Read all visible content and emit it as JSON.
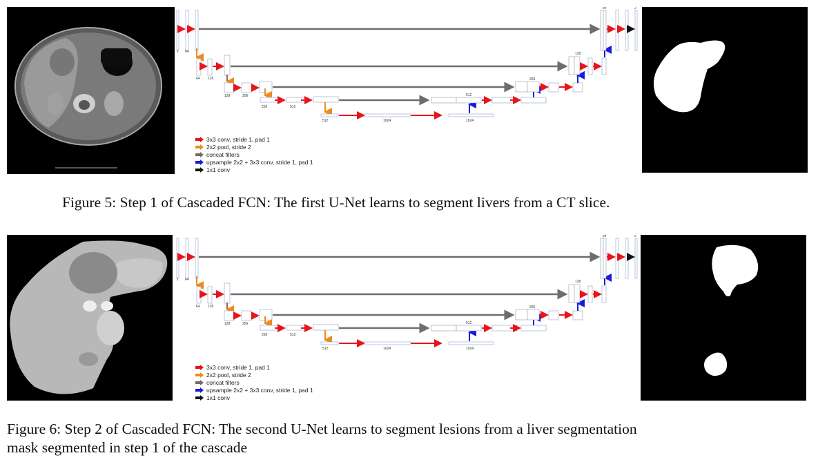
{
  "figures": [
    {
      "caption": "Figure 5: Step 1 of Cascaded FCN: The first U-Net learns to segment livers from a CT slice.",
      "input_desc": "ct-slice",
      "output_desc": "liver-mask"
    },
    {
      "caption_line1": "Figure 6: Step 2 of Cascaded FCN: The second U-Net learns to segment lesions from a liver segmentation",
      "caption_line2": "mask segmented in step 1 of the cascade",
      "input_desc": "liver-crop",
      "output_desc": "lesion-mask"
    }
  ],
  "legend": [
    {
      "label": "3x3 conv, stride 1, pad 1",
      "color": "#e8141b"
    },
    {
      "label": "2x2 pool, stride 2",
      "color": "#f08a1c"
    },
    {
      "label": "concat filters",
      "color": "#6d6d6d"
    },
    {
      "label": "upsample 2x2 + 3x3 conv, stride 1, pad 1",
      "color": "#1a1adf"
    },
    {
      "label": "1x1 conv",
      "color": "#111111"
    }
  ],
  "net_labels": {
    "c1": "1",
    "c64": "64",
    "c64b": "64",
    "c128": "128",
    "c128b": "128",
    "c256": "256",
    "c256b": "256",
    "c512": "512",
    "c512b": "512",
    "c1024": "1024",
    "c1024b": "1024",
    "u64": "64",
    "u2": "2",
    "u128": "128",
    "u256": "256",
    "u512": "512",
    "u1024": "1024"
  },
  "net_labels_2": {
    "c1": "1",
    "c64": "64",
    "c64b": "64",
    "c128": "128",
    "c128b": "128",
    "c256": "256",
    "c256b": "256",
    "c512": "512",
    "c512b": "512",
    "c1024": "1024",
    "c1024b": "1024",
    "u64": "64",
    "u2": "2",
    "u128": "128",
    "u256": "256",
    "u512": "512",
    "u1024": "1024"
  }
}
